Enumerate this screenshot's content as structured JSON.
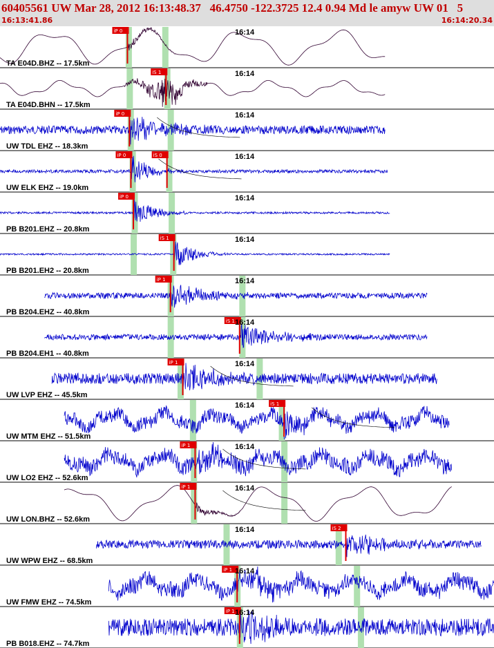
{
  "header": {
    "title": "60405561 UW Mar 28, 2012 16:13:48.37   46.4750 -122.3725 12.4 0.94 Md le amyw UW 01   5",
    "time_start": "16:13:41.86",
    "time_end": "16:14:20.34"
  },
  "colors": {
    "header_bg": "#dedede",
    "header_text": "#c00000",
    "trace_blue": "#0000cc",
    "trace_dark": "#300030",
    "pick_red": "#e00000",
    "window_green": "#b0e0b0"
  },
  "traces": [
    {
      "label": "TA E04D.BHZ -- 17.5km",
      "time_label": "16:14",
      "kind": "smooth",
      "seed": 3,
      "start": 0.0,
      "end": 0.78,
      "color": "dark",
      "picks": [
        {
          "label": "iP 0",
          "t": 0.258
        }
      ],
      "windows": [
        0.26,
        0.334
      ],
      "amp": 0.42
    },
    {
      "label": "TA E04D.BHN -- 17.5km",
      "time_label": "16:14",
      "kind": "mixed",
      "seed": 5,
      "start": 0.0,
      "end": 0.78,
      "color": "dark",
      "picks": [
        {
          "label": "iS 1",
          "t": 0.336
        }
      ],
      "windows": [
        0.262,
        0.338
      ],
      "amp": 0.32
    },
    {
      "label": "UW TDL EHZ -- 18.3km",
      "time_label": "16:14",
      "kind": "noise",
      "seed": 7,
      "start": 0.0,
      "end": 0.78,
      "color": "blue",
      "picks": [
        {
          "label": "iP 0",
          "t": 0.262
        }
      ],
      "windows": [
        0.264,
        0.345
      ],
      "amp": 0.2,
      "coda": true
    },
    {
      "label": "UW ELK EHZ -- 19.0km",
      "time_label": "16:14",
      "kind": "event",
      "seed": 11,
      "start": 0.0,
      "end": 0.785,
      "color": "blue",
      "picks": [
        {
          "label": "iP 0",
          "t": 0.265
        },
        {
          "label": "iS 0",
          "t": 0.338
        }
      ],
      "windows": [
        0.268,
        0.342
      ],
      "amp": 0.08,
      "coda": true
    },
    {
      "label": "PB B201.EHZ -- 20.8km",
      "time_label": "16:14",
      "kind": "event",
      "seed": 13,
      "start": 0.0,
      "end": 0.79,
      "color": "blue",
      "picks": [
        {
          "label": "iP 0",
          "t": 0.27
        }
      ],
      "windows": [
        0.272,
        0.347
      ],
      "amp": 0.05
    },
    {
      "label": "PB B201.EH2 -- 20.8km",
      "time_label": "16:14",
      "kind": "event",
      "seed": 17,
      "start": 0.0,
      "end": 0.79,
      "color": "blue",
      "picks": [
        {
          "label": "iS 1",
          "t": 0.352
        }
      ],
      "windows": [
        0.27,
        0.35
      ],
      "amp": 0.04
    },
    {
      "label": "PB B204.EHZ -- 40.8km",
      "time_label": "16:14",
      "kind": "noise",
      "seed": 19,
      "start": 0.09,
      "end": 0.865,
      "color": "blue",
      "picks": [
        {
          "label": "iP 1",
          "t": 0.345
        }
      ],
      "windows": [
        0.345,
        0.49
      ],
      "amp": 0.14
    },
    {
      "label": "PB B204.EH1 -- 40.8km",
      "time_label": "16:14",
      "kind": "noise",
      "seed": 23,
      "start": 0.09,
      "end": 0.865,
      "color": "blue",
      "picks": [
        {
          "label": "iS 1",
          "t": 0.485
        }
      ],
      "windows": [
        0.345,
        0.49
      ],
      "amp": 0.14
    },
    {
      "label": "UW LVP EHZ -- 45.5km",
      "time_label": "16:14",
      "kind": "noise",
      "seed": 29,
      "start": 0.105,
      "end": 0.885,
      "color": "blue",
      "picks": [
        {
          "label": "iP 1",
          "t": 0.37
        }
      ],
      "windows": [
        0.365,
        0.525
      ],
      "amp": 0.26,
      "coda": true
    },
    {
      "label": "UW MTM EHZ -- 51.5km",
      "time_label": "16:14",
      "kind": "swell",
      "seed": 31,
      "start": 0.13,
      "end": 0.91,
      "color": "blue",
      "picks": [
        {
          "label": "iS 1",
          "t": 0.575
        }
      ],
      "windows": [
        0.39,
        0.57
      ],
      "amp": 0.32,
      "coda": true
    },
    {
      "label": "UW LO2 EHZ -- 52.6km",
      "time_label": "16:14",
      "kind": "swell",
      "seed": 37,
      "start": 0.13,
      "end": 0.915,
      "color": "blue",
      "picks": [
        {
          "label": "iP 1",
          "t": 0.395
        }
      ],
      "windows": [
        0.392,
        0.575
      ],
      "amp": 0.38,
      "coda": true
    },
    {
      "label": "UW LON.BHZ -- 52.6km",
      "time_label": "16:14",
      "kind": "smooth",
      "seed": 41,
      "start": 0.13,
      "end": 0.915,
      "color": "dark",
      "picks": [
        {
          "label": "iP 1",
          "t": 0.395
        }
      ],
      "windows": [
        0.392,
        0.575
      ],
      "amp": 0.42,
      "coda": true
    },
    {
      "label": "UW WPW EHZ -- 68.5km",
      "time_label": "16:14",
      "kind": "noise",
      "seed": 43,
      "start": 0.195,
      "end": 0.975,
      "color": "blue",
      "picks": [
        {
          "label": "iS 2",
          "t": 0.7
        }
      ],
      "windows": [
        0.458,
        0.685
      ],
      "amp": 0.2
    },
    {
      "label": "UW FMW EHZ -- 74.5km",
      "time_label": "16:14",
      "kind": "swell",
      "seed": 47,
      "start": 0.22,
      "end": 1.0,
      "color": "blue",
      "picks": [
        {
          "label": "iP 1",
          "t": 0.48
        }
      ],
      "windows": [
        0.48,
        0.722
      ],
      "amp": 0.38
    },
    {
      "label": "PB B018.EHZ -- 74.7km",
      "time_label": "16:14",
      "kind": "noise",
      "seed": 53,
      "start": 0.22,
      "end": 1.0,
      "color": "blue",
      "picks": [
        {
          "label": "iP 1",
          "t": 0.485
        }
      ],
      "windows": [
        0.485,
        0.73
      ],
      "amp": 0.42
    }
  ]
}
